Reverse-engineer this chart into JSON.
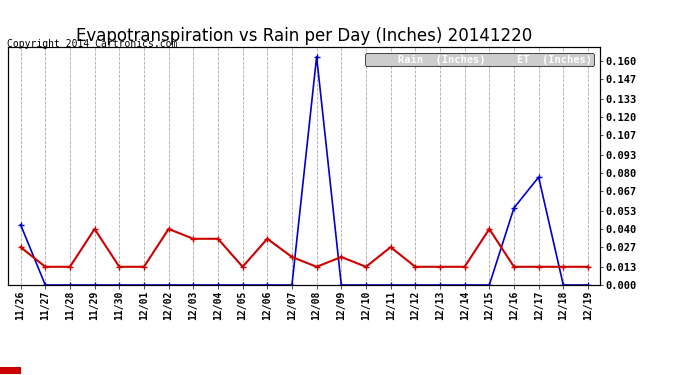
{
  "title": "Evapotranspiration vs Rain per Day (Inches) 20141220",
  "copyright": "Copyright 2014 Cartronics.com",
  "legend_rain": "Rain  (Inches)",
  "legend_et": "ET  (Inches)",
  "labels": [
    "11/26",
    "11/27",
    "11/28",
    "11/29",
    "11/30",
    "12/01",
    "12/02",
    "12/03",
    "12/04",
    "12/05",
    "12/06",
    "12/07",
    "12/08",
    "12/09",
    "12/10",
    "12/11",
    "12/12",
    "12/13",
    "12/14",
    "12/15",
    "12/16",
    "12/17",
    "12/18",
    "12/19"
  ],
  "rain": [
    0.043,
    0.0,
    0.0,
    0.0,
    0.0,
    0.0,
    0.0,
    0.0,
    0.0,
    0.0,
    0.0,
    0.0,
    0.163,
    0.0,
    0.0,
    0.0,
    0.0,
    0.0,
    0.0,
    0.0,
    0.055,
    0.077,
    0.0,
    0.0
  ],
  "et": [
    0.027,
    0.013,
    0.013,
    0.04,
    0.013,
    0.013,
    0.04,
    0.033,
    0.033,
    0.013,
    0.033,
    0.02,
    0.013,
    0.02,
    0.013,
    0.027,
    0.013,
    0.013,
    0.013,
    0.04,
    0.013,
    0.013,
    0.013,
    0.013
  ],
  "rain_color": "#0000CC",
  "et_color": "#CC0000",
  "legend_rain_bg": "#0000CC",
  "legend_et_bg": "#CC0000",
  "legend_text_color": "#FFFFFF",
  "background_color": "#FFFFFF",
  "grid_color": "#AAAAAA",
  "border_color": "#000000",
  "title_fontsize": 12,
  "copyright_fontsize": 7,
  "yticks": [
    0.0,
    0.013,
    0.027,
    0.04,
    0.053,
    0.067,
    0.08,
    0.093,
    0.107,
    0.12,
    0.133,
    0.147,
    0.16
  ],
  "ylim": [
    0.0,
    0.17
  ],
  "figsize": [
    6.9,
    3.75
  ],
  "dpi": 100
}
